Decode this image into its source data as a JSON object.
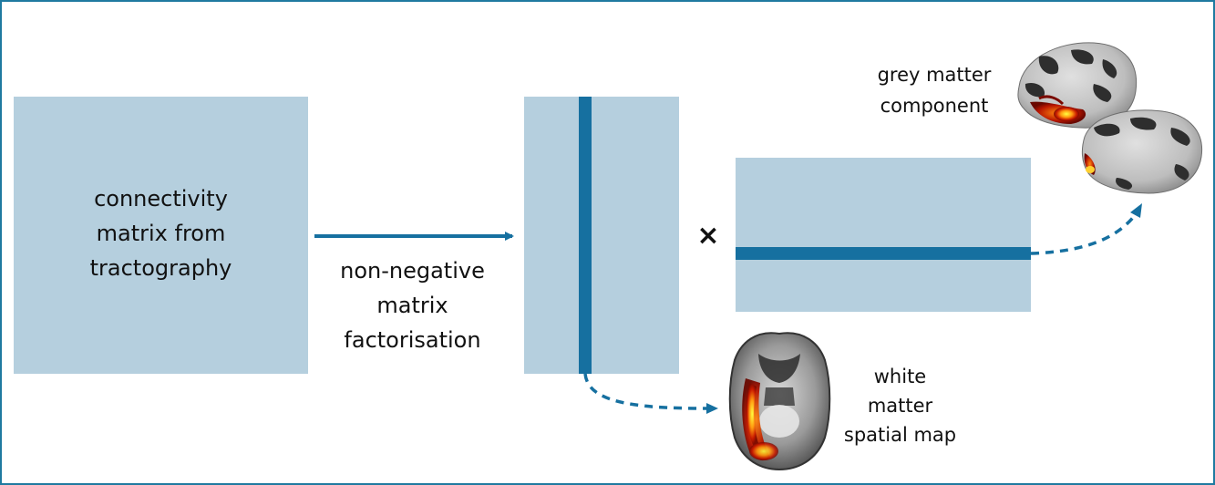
{
  "input_matrix": {
    "lines": [
      "connectivity",
      "matrix from",
      "tractography"
    ]
  },
  "method": {
    "lines": [
      "non-negative",
      "matrix",
      "factorisation"
    ]
  },
  "operator": {
    "symbol": "×"
  },
  "grey_matter": {
    "lines": [
      "grey matter",
      "component"
    ]
  },
  "white_matter": {
    "lines": [
      "white",
      "matter",
      "spatial map"
    ]
  },
  "colors": {
    "block_fill": "#b5cfde",
    "accent": "#1670a0",
    "border": "#1f7aa0"
  }
}
